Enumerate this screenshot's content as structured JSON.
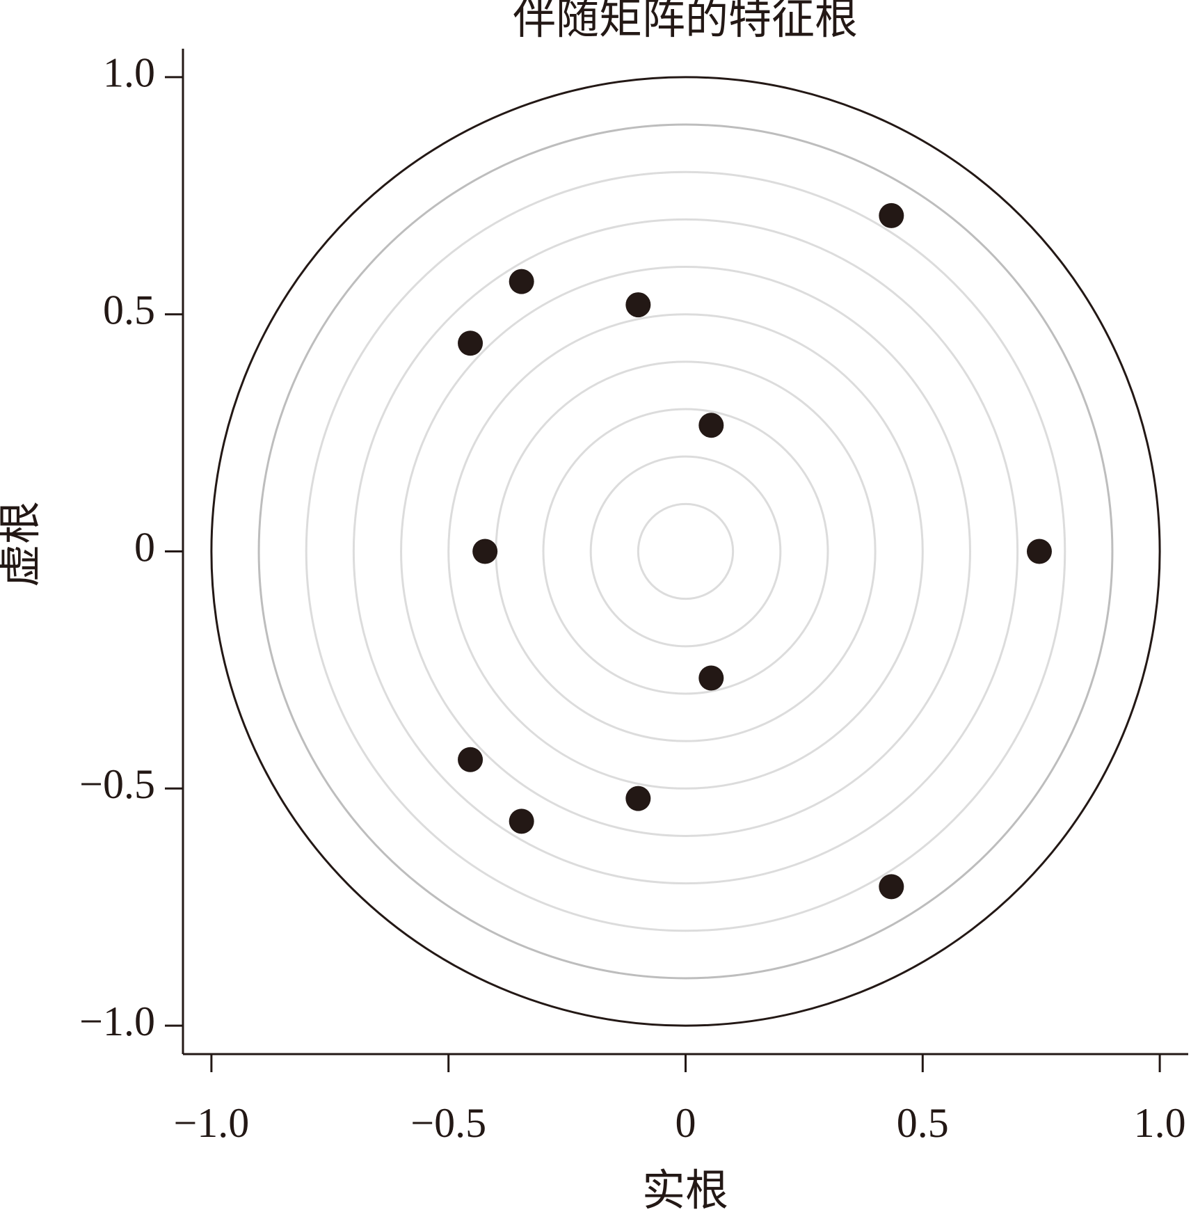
{
  "chart_data": {
    "type": "scatter",
    "title": "伴随矩阵的特征根",
    "x_label": "实根",
    "y_label": "虚根",
    "series": [
      {
        "color": "#231815",
        "x": [
          0.434,
          0.434,
          -0.346,
          -0.346,
          -0.1,
          -0.1,
          -0.454,
          -0.454,
          0.054,
          0.054,
          -0.423,
          0.746
        ],
        "values": [
          0.708,
          -0.707,
          0.569,
          -0.569,
          0.52,
          -0.521,
          0.439,
          -0.439,
          0.266,
          -0.267,
          0,
          0
        ]
      }
    ],
    "xlim": [
      -1.06,
      1.06
    ],
    "ylim": [
      -1.06,
      1.06
    ],
    "xticks": [
      {
        "value": -1,
        "label": "−1.0"
      },
      {
        "value": -0.5,
        "label": "−0.5"
      },
      0,
      0.5,
      {
        "value": 1,
        "label": "1.0"
      }
    ],
    "yticks": [
      {
        "value": -1,
        "label": "−1.0"
      },
      {
        "value": -0.5,
        "label": "−0.5"
      },
      0,
      0.5,
      {
        "value": 1,
        "label": "1.0"
      }
    ],
    "reference_circles": {
      "radii": [
        0.1,
        0.2,
        0.3,
        0.4,
        0.5,
        0.6,
        0.7,
        0.8,
        0.9,
        1
      ],
      "colors": [
        "#dcdcdc",
        "#dcdcdc",
        "#dcdcdc",
        "#dcdcdc",
        "#dcdcdc",
        "#dcdcdc",
        "#dcdcdc",
        "#dcdcdc",
        "#bdbdbd",
        "#231815"
      ]
    }
  }
}
